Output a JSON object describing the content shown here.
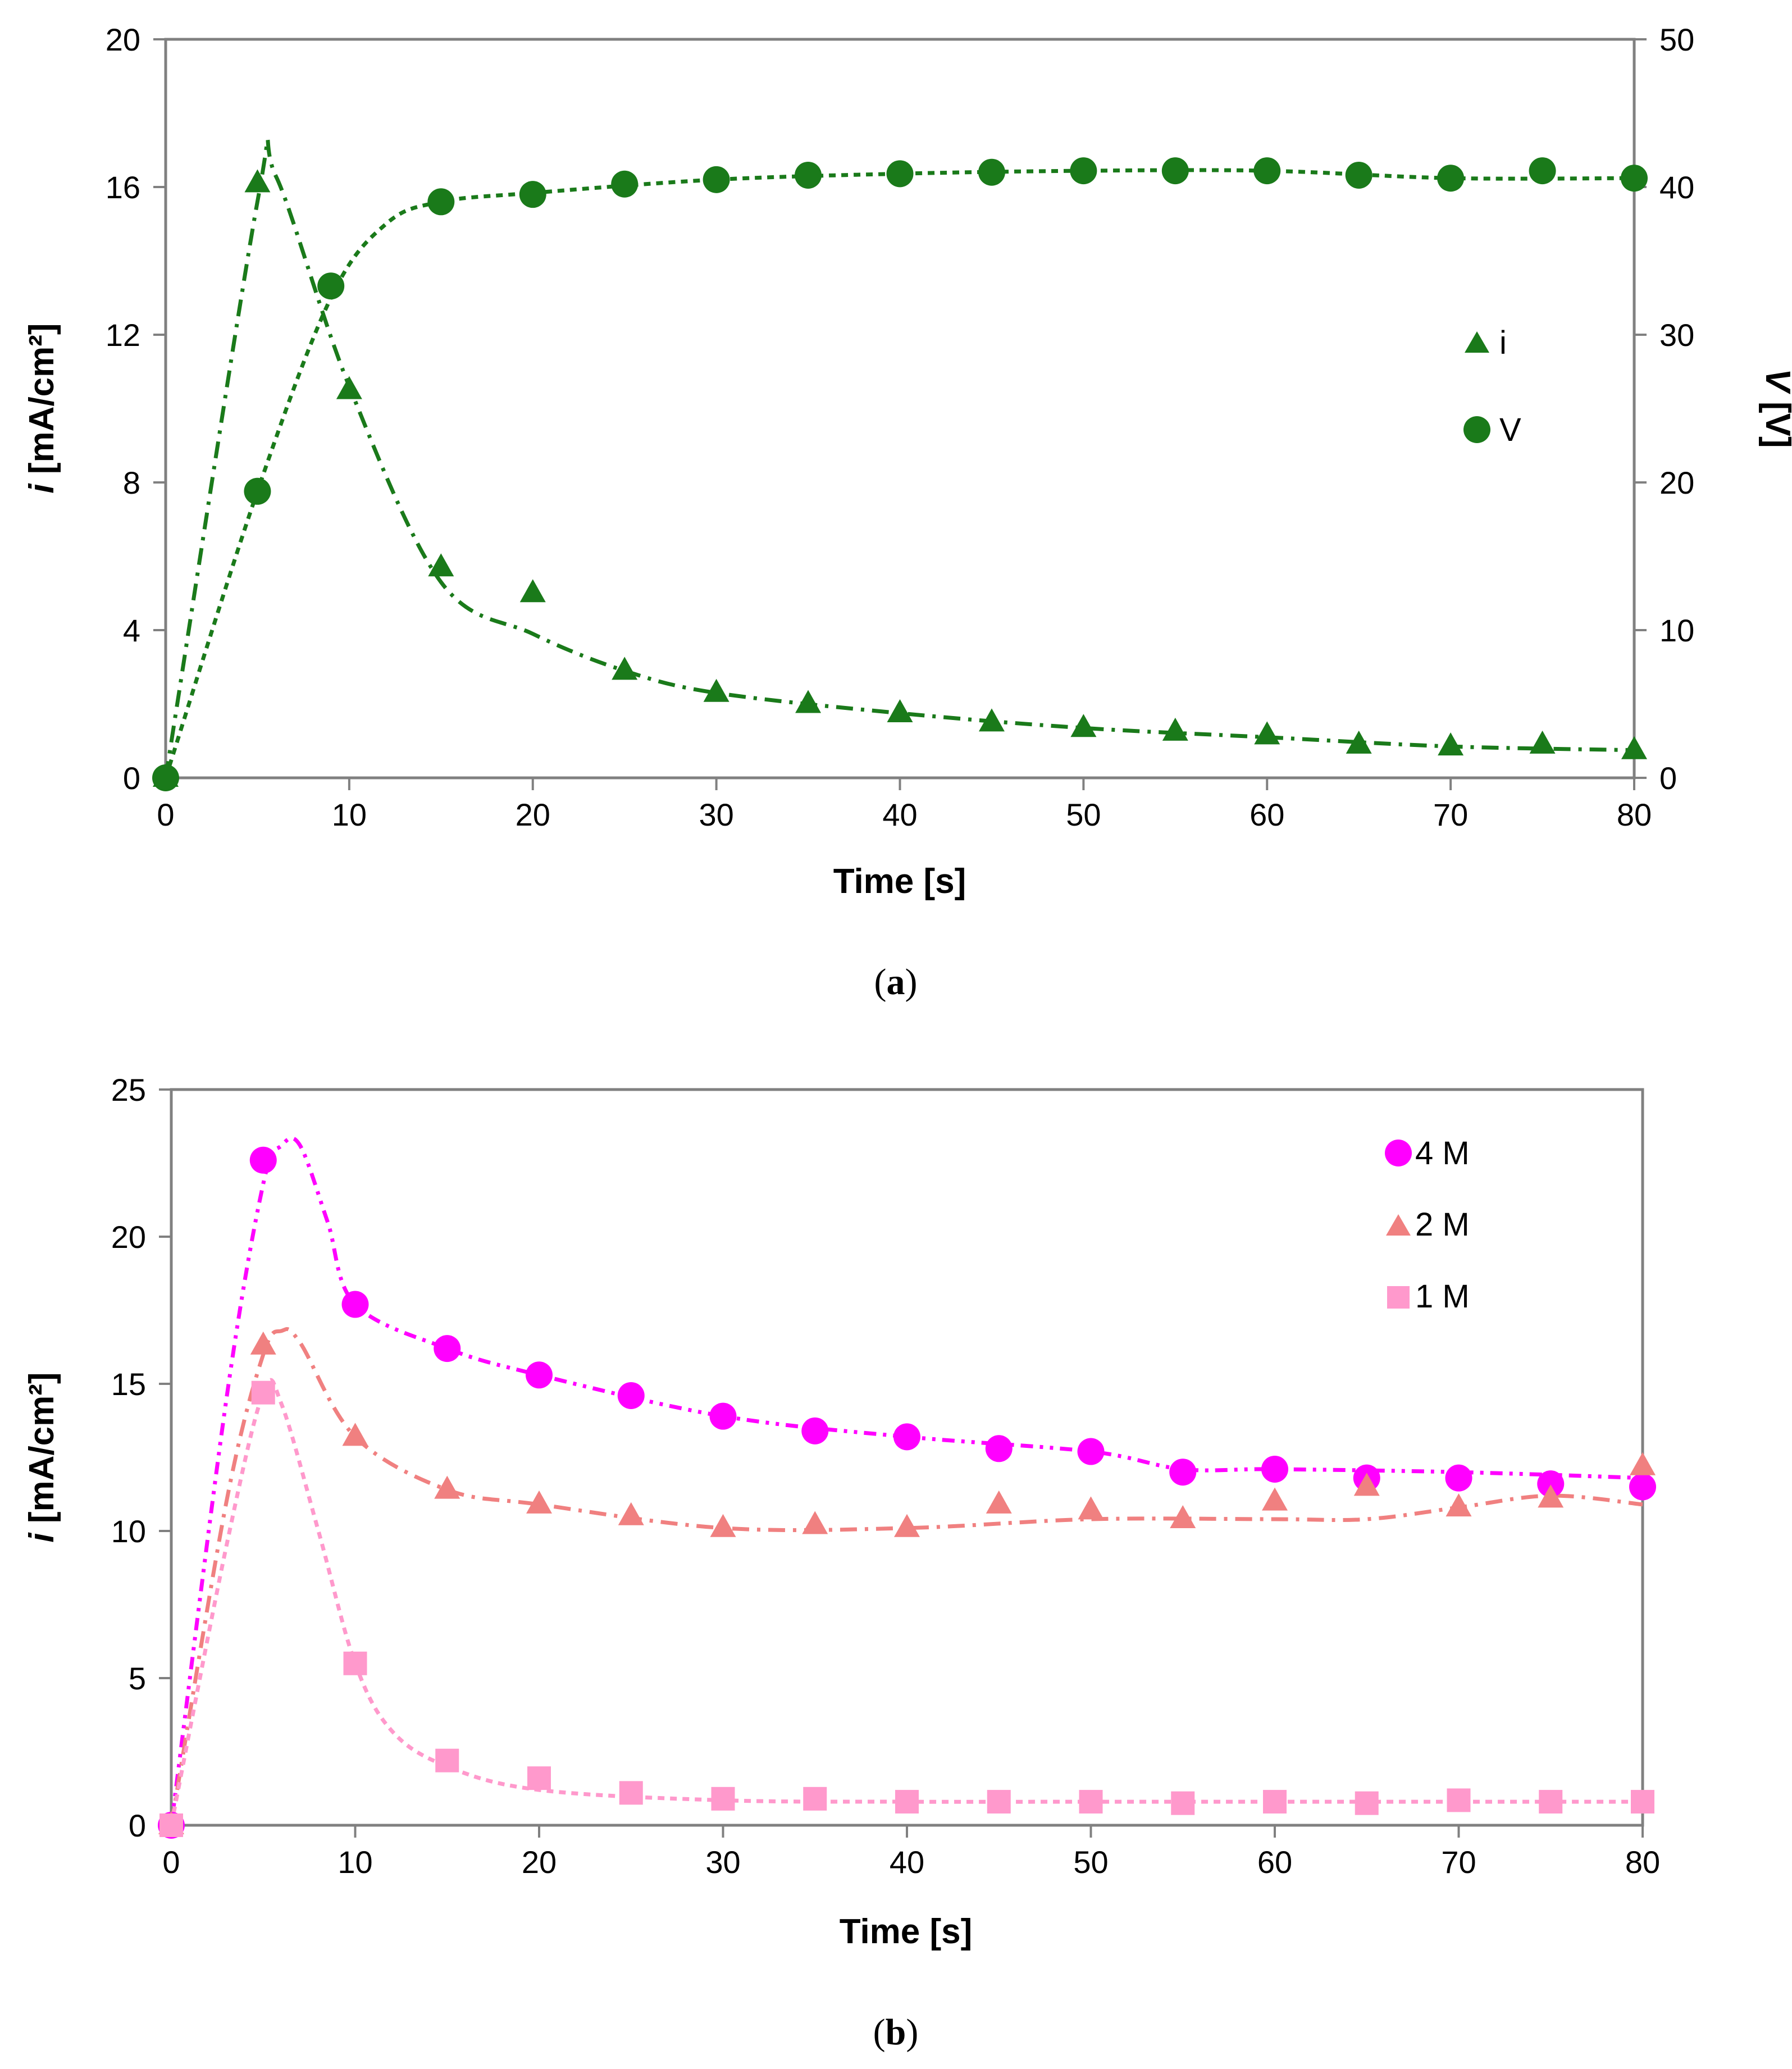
{
  "chart_data": [
    {
      "id": "a",
      "type": "line",
      "caption_letter": "a",
      "xlabel": "Time [s]",
      "ylabel_left_var": "i",
      "ylabel_left_unit": " [mA/cm²]",
      "ylabel_right_var": "V",
      "ylabel_right_unit": " [V]",
      "xlim": [
        0,
        80
      ],
      "xticks": [
        0,
        10,
        20,
        30,
        40,
        50,
        60,
        70,
        80
      ],
      "ylim_left": [
        0,
        20
      ],
      "yticks_left": [
        0,
        4,
        8,
        12,
        16,
        20
      ],
      "ylim_right": [
        0,
        50
      ],
      "yticks_right": [
        0,
        10,
        20,
        30,
        40,
        50
      ],
      "legend_position": "right-middle",
      "series": [
        {
          "name": "i",
          "axis": "left",
          "marker": "triangle",
          "color": "#1a7a1a",
          "x": [
            0,
            5,
            10,
            15,
            20,
            25,
            30,
            35,
            40,
            45,
            50,
            55,
            60,
            65,
            70,
            75,
            80
          ],
          "values": [
            0,
            16.1,
            10.5,
            5.7,
            5.0,
            2.9,
            2.3,
            2.0,
            1.75,
            1.5,
            1.35,
            1.25,
            1.15,
            0.9,
            0.85,
            0.9,
            0.75
          ],
          "fit_x": [
            0,
            5,
            6,
            10,
            15,
            20,
            25,
            30,
            40,
            50,
            60,
            70,
            80
          ],
          "fit_y": [
            0,
            15.6,
            16.3,
            10.6,
            5.3,
            3.9,
            2.9,
            2.3,
            1.75,
            1.35,
            1.1,
            0.85,
            0.75
          ]
        },
        {
          "name": "V",
          "axis": "right",
          "marker": "circle",
          "color": "#1a7a1a",
          "x": [
            0,
            5,
            9,
            15,
            20,
            25,
            30,
            35,
            40,
            45,
            50,
            55,
            60,
            65,
            70,
            75,
            80
          ],
          "values": [
            0,
            19.4,
            33.3,
            39.0,
            39.5,
            40.2,
            40.5,
            40.8,
            40.9,
            41.0,
            41.1,
            41.1,
            41.1,
            40.8,
            40.6,
            41.1,
            40.6
          ],
          "fit_x": [
            0,
            5,
            9,
            12,
            15,
            20,
            30,
            40,
            50,
            60,
            70,
            80
          ],
          "fit_y": [
            0,
            19.4,
            32.5,
            37.5,
            39.0,
            39.6,
            40.5,
            40.9,
            41.1,
            41.1,
            40.6,
            40.6
          ]
        }
      ]
    },
    {
      "id": "b",
      "type": "line",
      "caption_letter": "b",
      "xlabel": "Time [s]",
      "ylabel_var": "i",
      "ylabel_unit": " [mA/cm²]",
      "xlim": [
        0,
        80
      ],
      "xticks": [
        0,
        10,
        20,
        30,
        40,
        50,
        60,
        70,
        80
      ],
      "ylim": [
        0,
        25
      ],
      "yticks": [
        0,
        5,
        10,
        15,
        20,
        25
      ],
      "legend_position": "top-right",
      "series": [
        {
          "name": "4 M",
          "marker": "circle",
          "color": "#ff00ff",
          "x": [
            0,
            5,
            10,
            15,
            20,
            25,
            30,
            35,
            40,
            45,
            50,
            55,
            60,
            65,
            70,
            75,
            80
          ],
          "values": [
            0,
            22.6,
            17.7,
            16.2,
            15.3,
            14.6,
            13.9,
            13.4,
            13.2,
            12.8,
            12.7,
            12.0,
            12.1,
            11.8,
            11.8,
            11.6,
            11.5
          ],
          "fit_x": [
            0,
            3,
            5,
            6,
            7,
            8.5,
            10,
            15,
            20,
            30,
            40,
            50,
            55,
            60,
            70,
            80
          ],
          "fit_y": [
            0,
            14.5,
            21.8,
            23.1,
            23.1,
            20.5,
            17.7,
            16.2,
            15.3,
            13.9,
            13.2,
            12.7,
            12.1,
            12.1,
            12.0,
            11.8
          ]
        },
        {
          "name": "2 M",
          "marker": "triangle",
          "color": "#f08080",
          "x": [
            0,
            5,
            10,
            15,
            20,
            25,
            30,
            35,
            40,
            45,
            50,
            55,
            60,
            65,
            70,
            75,
            80
          ],
          "values": [
            0,
            16.3,
            13.2,
            11.4,
            10.9,
            10.5,
            10.1,
            10.2,
            10.1,
            10.9,
            10.7,
            10.4,
            11.0,
            11.5,
            10.8,
            11.1,
            12.2
          ],
          "fit_x": [
            0,
            3,
            5,
            6,
            7,
            10,
            15,
            20,
            30,
            40,
            50,
            60,
            65,
            70,
            75,
            80
          ],
          "fit_y": [
            0,
            11.0,
            16.0,
            16.8,
            16.4,
            13.2,
            11.4,
            10.9,
            10.1,
            10.1,
            10.4,
            10.4,
            10.4,
            10.8,
            11.2,
            10.9
          ]
        },
        {
          "name": "1 M",
          "marker": "square",
          "color": "#ff99cc",
          "x": [
            0,
            5,
            10,
            15,
            20,
            25,
            30,
            35,
            40,
            45,
            50,
            55,
            60,
            65,
            70,
            75,
            80
          ],
          "values": [
            0,
            14.7,
            5.5,
            2.2,
            1.6,
            1.1,
            0.9,
            0.9,
            0.8,
            0.8,
            0.8,
            0.75,
            0.8,
            0.75,
            0.85,
            0.8,
            0.8
          ],
          "fit_x": [
            0,
            3,
            5,
            6,
            8,
            10,
            12,
            15,
            20,
            30,
            40,
            50,
            60,
            70,
            80
          ],
          "fit_y": [
            0,
            9.5,
            14.7,
            14.3,
            10.0,
            5.5,
            3.2,
            2.0,
            1.2,
            0.85,
            0.8,
            0.8,
            0.8,
            0.8,
            0.8
          ]
        }
      ]
    }
  ]
}
